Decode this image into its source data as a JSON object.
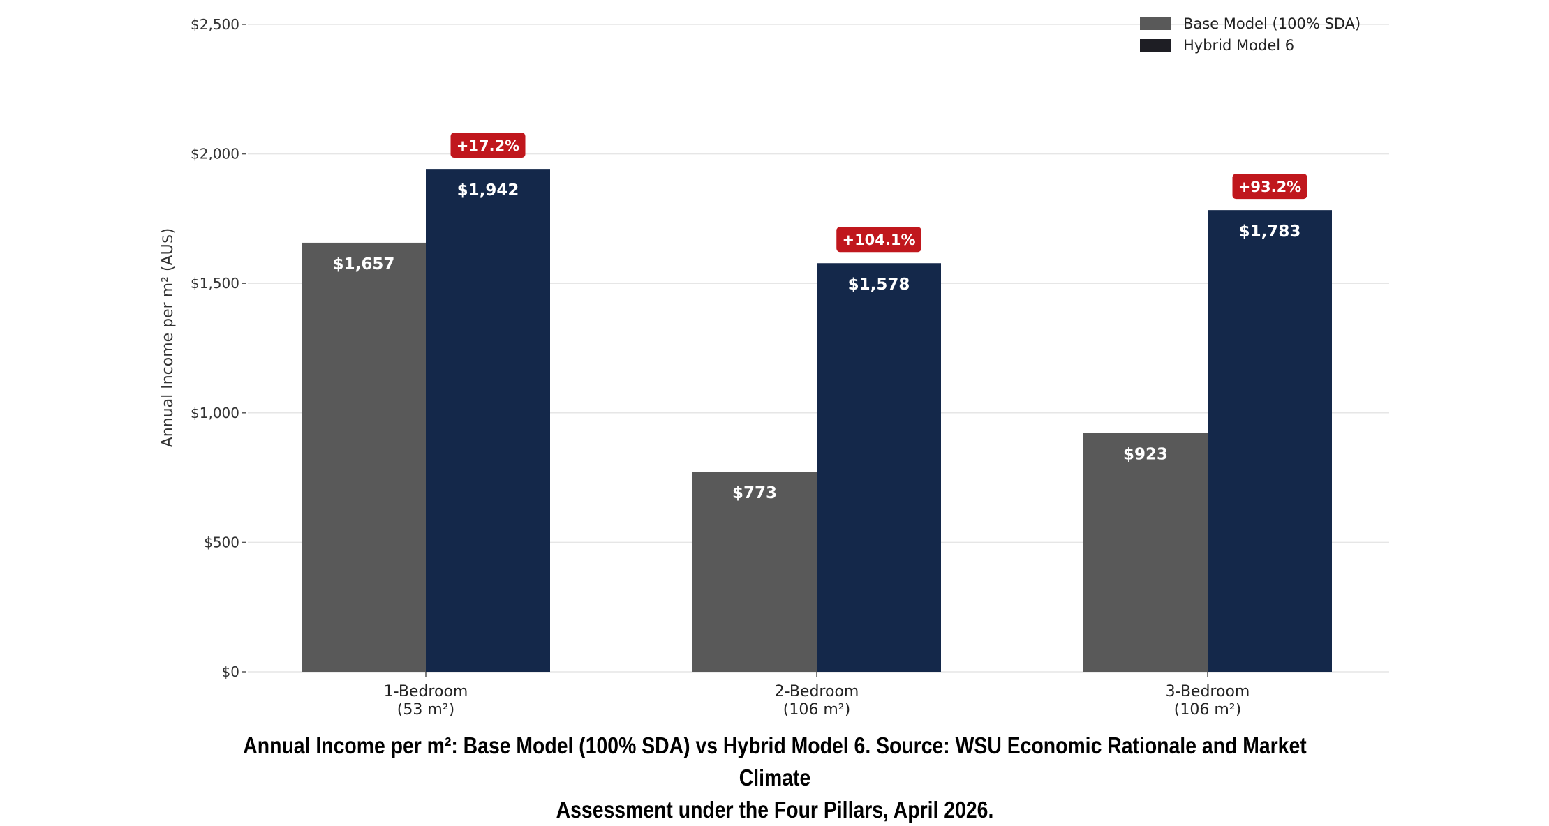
{
  "chart_data": {
    "type": "bar",
    "categories": [
      [
        "1-Bedroom",
        "(53 m²)"
      ],
      [
        "2-Bedroom",
        "(106 m²)"
      ],
      [
        "3-Bedroom",
        "(106 m²)"
      ]
    ],
    "series": [
      {
        "name": "Base Model (100% SDA)",
        "values": [
          1657,
          773,
          923
        ],
        "labels": [
          "$1,657",
          "$773",
          "$923"
        ],
        "color": "#595959"
      },
      {
        "name": "Hybrid Model 6",
        "values": [
          1942,
          1578,
          1783
        ],
        "labels": [
          "$1,942",
          "$1,578",
          "$1,783"
        ],
        "color": "#14284a"
      }
    ],
    "change_labels": [
      "+17.2%",
      "+104.1%",
      "+93.2%"
    ],
    "badge_color": "#c0171d",
    "ylabel": "Annual Income per m² (AU$)",
    "ylim": [
      0,
      2500
    ],
    "yticks": [
      0,
      500,
      1000,
      1500,
      2000,
      2500
    ],
    "ytick_labels": [
      "$0",
      "$500",
      "$1,000",
      "$1,500",
      "$2,000",
      "$2,500"
    ],
    "grid": "horizontal",
    "legend_position": "top-right"
  },
  "caption": {
    "line1": "Annual Income per m²: Base Model (100% SDA) vs Hybrid Model 6. Source: WSU Economic Rationale and Market Climate",
    "line2": "Assessment under the Four Pillars, April 2026."
  }
}
